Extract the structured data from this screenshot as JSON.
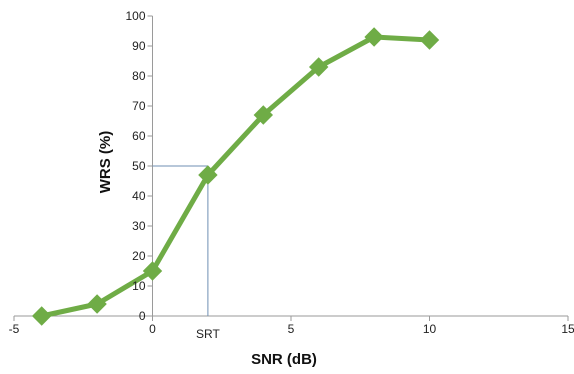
{
  "chart_data": {
    "type": "line",
    "title": "",
    "xlabel": "SNR (dB)",
    "ylabel": "WRS (%)",
    "xlim": [
      -5,
      15
    ],
    "ylim": [
      0,
      100
    ],
    "x_ticks": [
      -5,
      0,
      5,
      10,
      15
    ],
    "y_ticks": [
      0,
      10,
      20,
      30,
      40,
      50,
      60,
      70,
      80,
      90,
      100
    ],
    "grid": false,
    "legend": "none",
    "series": [
      {
        "x": [
          -4,
          -2,
          0,
          2,
          4,
          6,
          8,
          10
        ],
        "y": [
          0,
          4,
          15,
          47,
          67,
          83,
          93,
          92
        ],
        "color": "#6fac46",
        "marker": "diamond"
      }
    ],
    "annotation": {
      "label": "SRT",
      "x": 2,
      "y": 50,
      "color": "#6f8fb3"
    }
  }
}
